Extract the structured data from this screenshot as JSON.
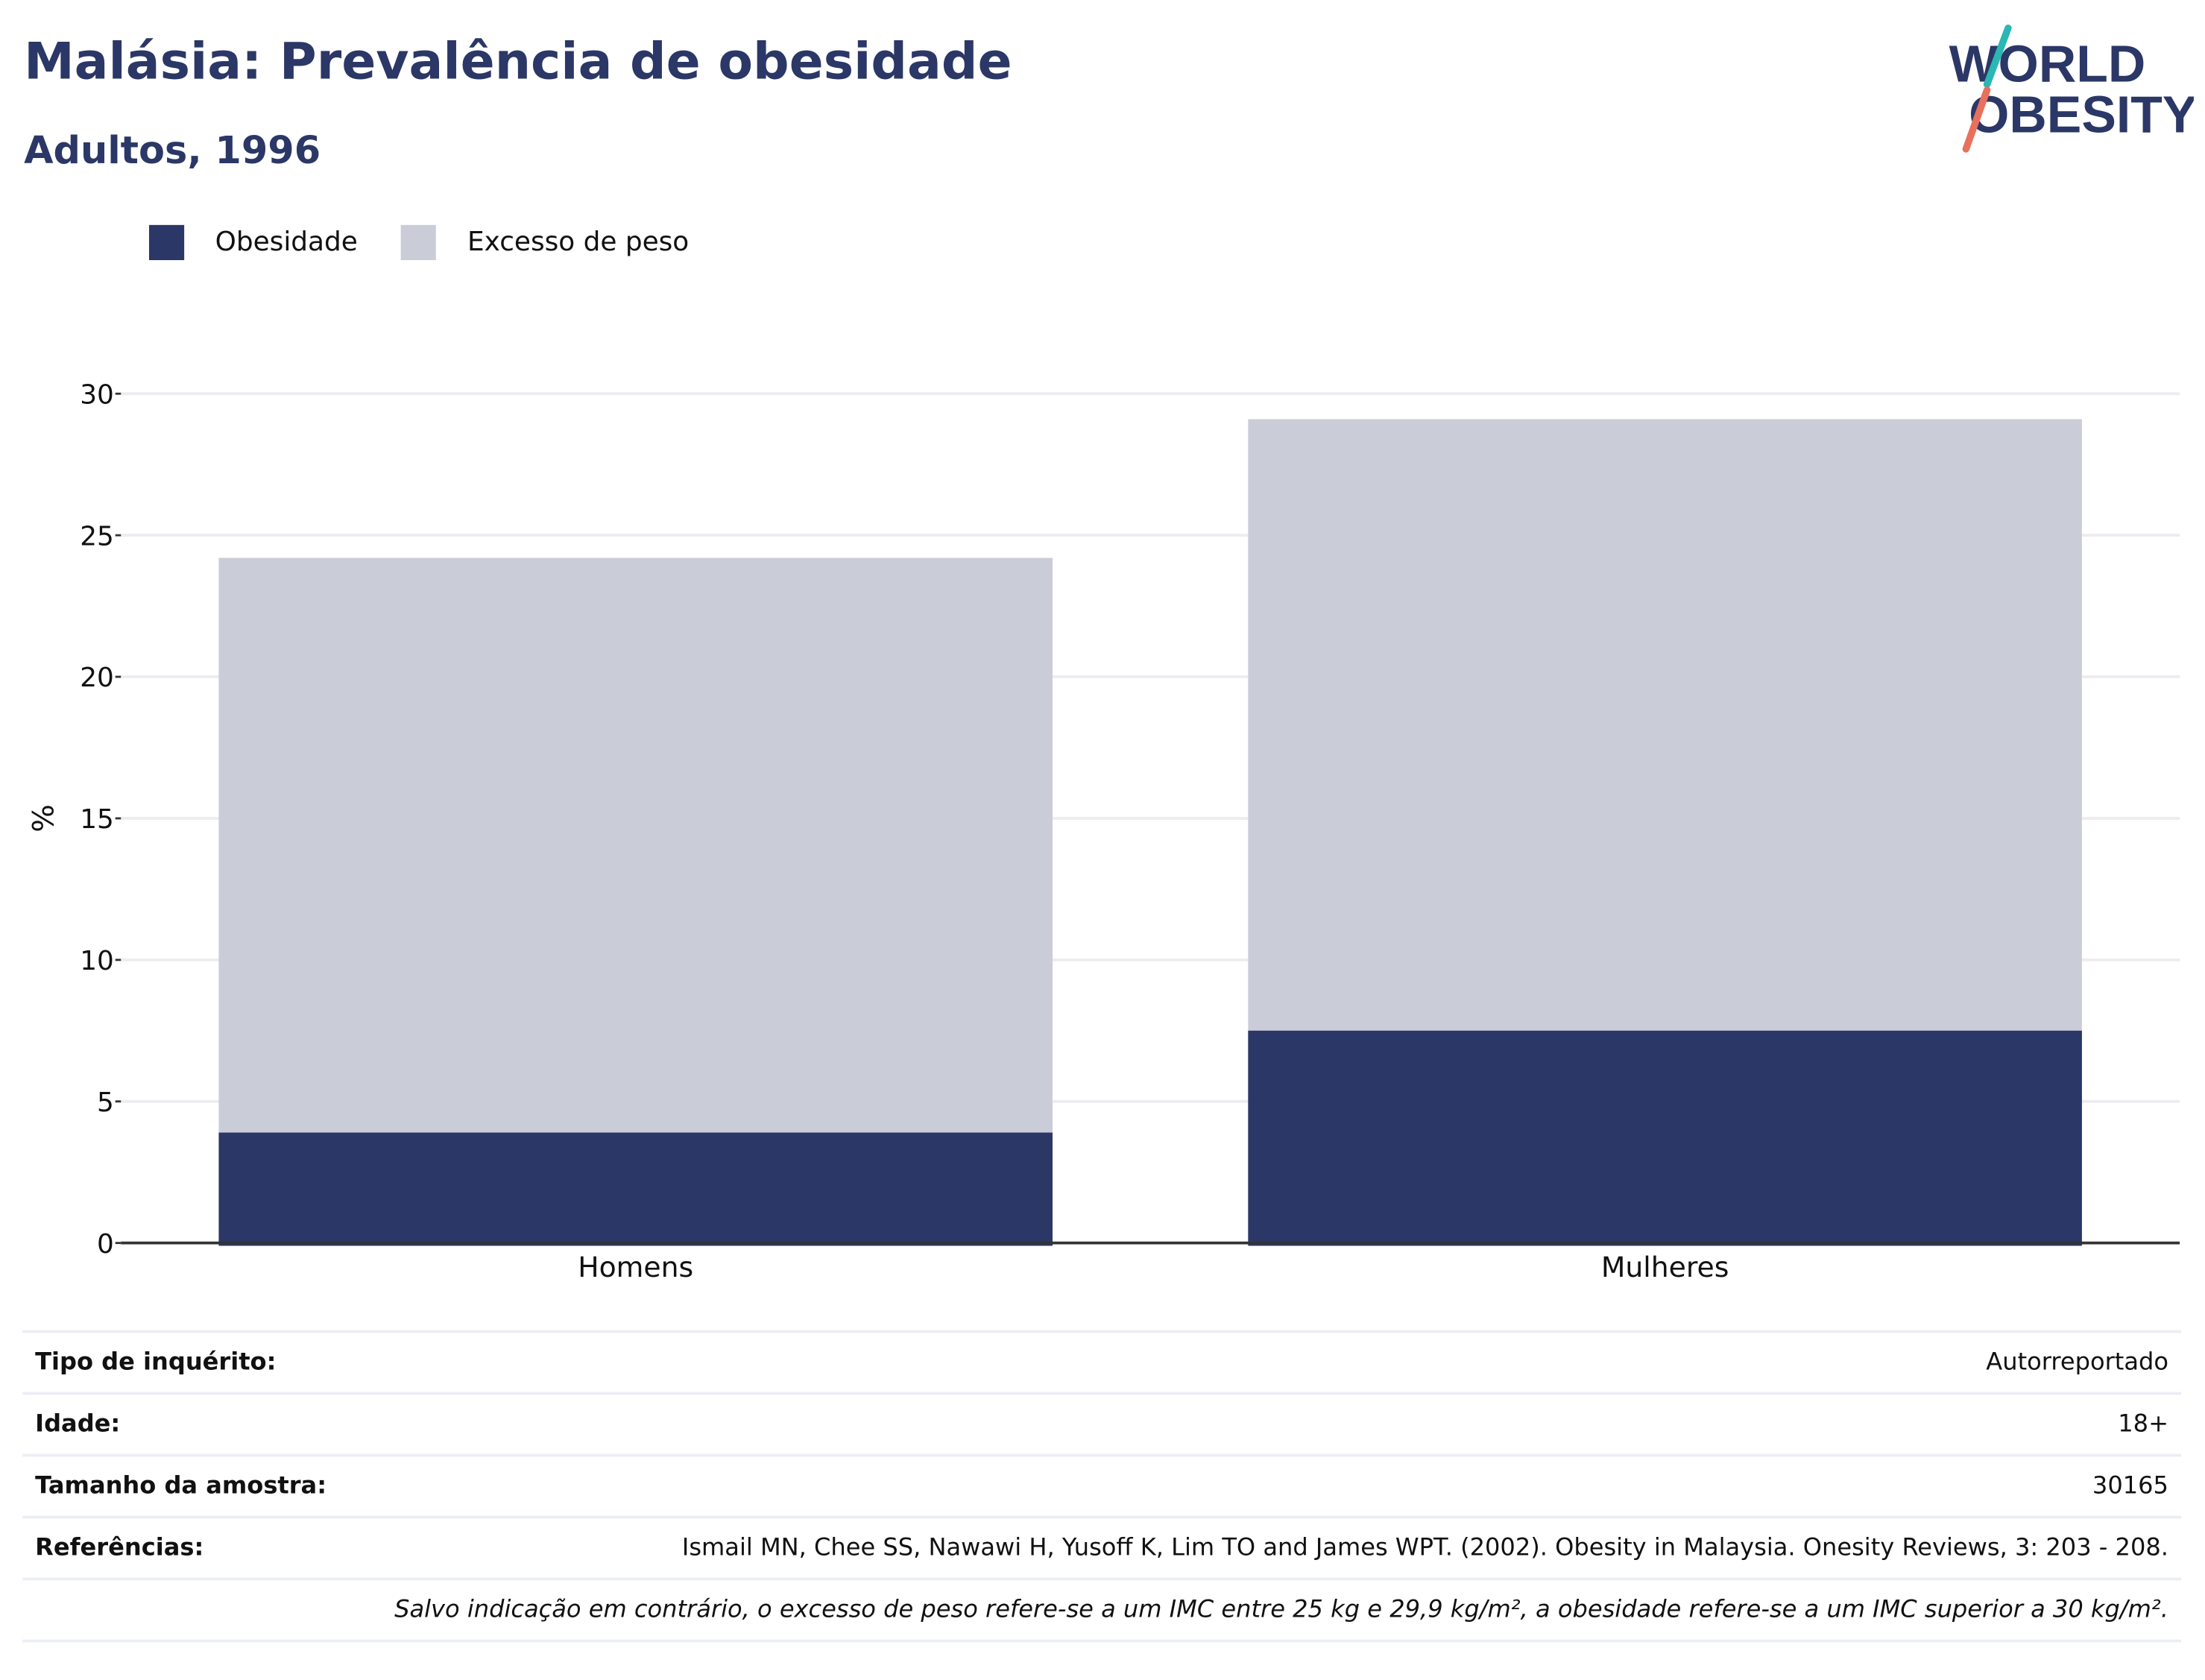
{
  "header": {
    "title": "Malásia: Prevalência de obesidade",
    "subtitle": "Adultos, 1996"
  },
  "logo": {
    "line1": "WORLD",
    "line2": "OBESITY",
    "colors": {
      "text": "#2b3766",
      "slash_top": "#2bb7b3",
      "slash_bottom": "#e8705c"
    }
  },
  "colors": {
    "title": "#2b3766",
    "obesity": "#2b3766",
    "overweight": "#caccd8",
    "grid": "#ececf1",
    "axis": "#333333"
  },
  "legend": [
    {
      "label": "Obesidade",
      "color": "#2b3766"
    },
    {
      "label": "Excesso de peso",
      "color": "#caccd8"
    }
  ],
  "chart_data": {
    "type": "bar",
    "stacked": false,
    "categories": [
      "Homens",
      "Mulheres"
    ],
    "series": [
      {
        "name": "Excesso de peso",
        "values": [
          24.2,
          29.1
        ],
        "color": "#caccd8"
      },
      {
        "name": "Obesidade",
        "values": [
          3.9,
          7.5
        ],
        "color": "#2b3766"
      }
    ],
    "ylabel": "%",
    "ylim": [
      0,
      30
    ],
    "yticks": [
      0,
      5,
      10,
      15,
      20,
      25,
      30
    ],
    "grid": true,
    "legend_position": "top-left"
  },
  "info": {
    "rows": [
      {
        "label": "Tipo de inquérito:",
        "value": "Autorreportado"
      },
      {
        "label": "Idade:",
        "value": "18+"
      },
      {
        "label": "Tamanho da amostra:",
        "value": "30165"
      },
      {
        "label": "Referências:",
        "value": "Ismail MN, Chee SS, Nawawi H, Yusoff K, Lim TO and James WPT. (2002). Obesity in Malaysia. Onesity Reviews, 3: 203 - 208."
      }
    ],
    "note": "Salvo indicação em contrário, o excesso de peso refere-se a um IMC entre 25 kg e 29,9 kg/m², a obesidade refere-se a um IMC superior a 30 kg/m²."
  }
}
